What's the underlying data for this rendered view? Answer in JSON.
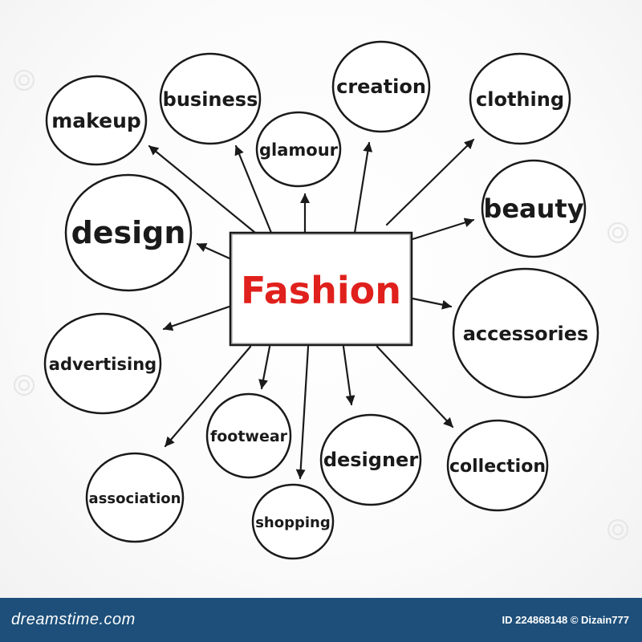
{
  "center": {
    "label": "Fashion",
    "color": "#e0201c"
  },
  "nodes": [
    {
      "id": "makeup",
      "label": "makeup"
    },
    {
      "id": "business",
      "label": "business"
    },
    {
      "id": "creation",
      "label": "creation"
    },
    {
      "id": "clothing",
      "label": "clothing"
    },
    {
      "id": "glamour",
      "label": "glamour"
    },
    {
      "id": "design",
      "label": "design"
    },
    {
      "id": "beauty",
      "label": "beauty"
    },
    {
      "id": "accessories",
      "label": "accessories"
    },
    {
      "id": "advertising",
      "label": "advertising"
    },
    {
      "id": "footwear",
      "label": "footwear"
    },
    {
      "id": "designer",
      "label": "designer"
    },
    {
      "id": "collection",
      "label": "collection"
    },
    {
      "id": "association",
      "label": "association"
    },
    {
      "id": "shopping",
      "label": "shopping"
    }
  ],
  "footer": {
    "brand": "dreamstime.com",
    "credit": "ID 224868148 © Dizain777",
    "background": "#1d4f7a"
  }
}
